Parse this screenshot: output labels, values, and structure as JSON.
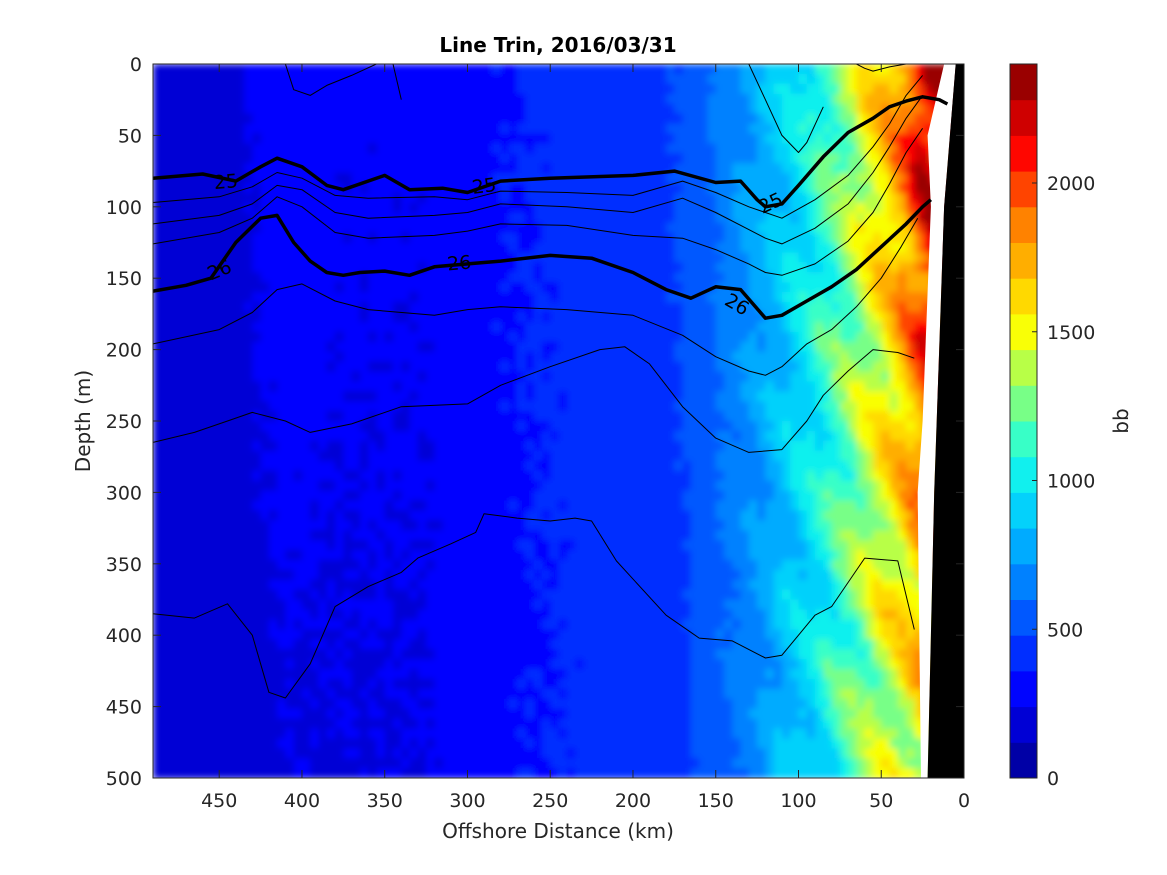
{
  "chart_data": {
    "type": "heatmap",
    "title": "Line Trin, 2016/03/31",
    "xlabel": "Offshore Distance (km)",
    "ylabel": "Depth (m)",
    "x_reversed": true,
    "y_reversed": true,
    "xlim": [
      0,
      490
    ],
    "ylim": [
      0,
      500
    ],
    "xticks": [
      450,
      400,
      350,
      300,
      250,
      200,
      150,
      100,
      50,
      0
    ],
    "xtick_labels": [
      "450",
      "400",
      "350",
      "300",
      "250",
      "200",
      "150",
      "100",
      "50",
      "0"
    ],
    "yticks": [
      0,
      50,
      100,
      150,
      200,
      250,
      300,
      350,
      400,
      450,
      500
    ],
    "ytick_labels": [
      "0",
      "50",
      "100",
      "150",
      "200",
      "250",
      "300",
      "350",
      "400",
      "450",
      "500"
    ],
    "colorbar": {
      "label": "bb",
      "range": [
        0,
        2400
      ],
      "ticks": [
        0,
        500,
        1000,
        1500,
        2000
      ],
      "tick_labels": [
        "0",
        "500",
        "1000",
        "1500",
        "2000"
      ],
      "levels": 20,
      "colormap": [
        "#00008f",
        "#0000ff",
        "#00c8ff",
        "#18ffe7",
        "#ffff00",
        "#ff8800",
        "#ff0000",
        "#800000"
      ]
    },
    "field_profile": {
      "description_free": true,
      "x": [
        490,
        450,
        430,
        410,
        380,
        320,
        300,
        250,
        200,
        170,
        150,
        130,
        110,
        90,
        70,
        50,
        35,
        25,
        20
      ],
      "surface_value": [
        180,
        170,
        250,
        300,
        260,
        260,
        330,
        380,
        420,
        500,
        620,
        760,
        900,
        1100,
        1350,
        1650,
        1950,
        2250,
        2300
      ],
      "deep_value": [
        180,
        170,
        200,
        230,
        230,
        240,
        320,
        360,
        400,
        450,
        550,
        650,
        800,
        950,
        1150,
        1350,
        1450,
        1550,
        1550
      ]
    },
    "coast": {
      "shelf_x": [
        22,
        20,
        18,
        15,
        12,
        5,
        0
      ],
      "shelf_depth": [
        500,
        400,
        300,
        200,
        100,
        0,
        0
      ]
    },
    "contours": [
      {
        "level": "25",
        "emphasis": true,
        "x": [
          490,
          460,
          440,
          425,
          415,
          400,
          385,
          375,
          350,
          335,
          315,
          300,
          280,
          250,
          200,
          175,
          150,
          135,
          125,
          120,
          110,
          100,
          85,
          70,
          55,
          45,
          35,
          25,
          15,
          10
        ],
        "depth": [
          80,
          77,
          82,
          72,
          66,
          72,
          85,
          88,
          78,
          88,
          87,
          90,
          82,
          80,
          78,
          75,
          83,
          82,
          95,
          100,
          98,
          85,
          65,
          48,
          38,
          30,
          26,
          23,
          25,
          28
        ],
        "labels": [
          {
            "x": 446,
            "depth": 82,
            "angle": -5
          },
          {
            "x": 290,
            "depth": 85,
            "angle": -8
          },
          {
            "x": 117,
            "depth": 97,
            "angle": -25
          }
        ]
      },
      {
        "level": "26",
        "emphasis": true,
        "x": [
          490,
          470,
          455,
          440,
          425,
          415,
          405,
          395,
          385,
          375,
          365,
          350,
          335,
          320,
          300,
          280,
          250,
          225,
          200,
          180,
          165,
          150,
          135,
          120,
          110,
          95,
          80,
          65,
          50,
          35,
          25,
          20
        ],
        "depth": [
          159,
          155,
          150,
          125,
          108,
          106,
          125,
          138,
          146,
          148,
          146,
          145,
          148,
          142,
          140,
          138,
          134,
          136,
          146,
          158,
          164,
          156,
          158,
          178,
          176,
          166,
          156,
          144,
          128,
          112,
          100,
          95
        ],
        "labels": [
          {
            "x": 450,
            "depth": 144,
            "angle": -22
          },
          {
            "x": 305,
            "depth": 139,
            "angle": -5
          },
          {
            "x": 137,
            "depth": 168,
            "angle": 30
          }
        ]
      },
      {
        "level": "",
        "emphasis": false,
        "x": [
          490,
          450,
          430,
          415,
          400,
          380,
          360,
          320,
          300,
          280,
          240,
          200,
          170,
          150,
          130,
          120,
          110,
          90,
          70,
          55,
          45,
          35,
          25
        ],
        "depth": [
          97,
          93,
          86,
          76,
          80,
          92,
          94,
          93,
          95,
          89,
          90,
          92,
          82,
          90,
          100,
          104,
          108,
          95,
          78,
          58,
          42,
          22,
          8
        ]
      },
      {
        "level": "",
        "emphasis": false,
        "x": [
          490,
          450,
          430,
          415,
          400,
          380,
          360,
          320,
          300,
          280,
          240,
          200,
          170,
          150,
          130,
          120,
          110,
          90,
          70,
          55,
          45,
          35,
          25
        ],
        "depth": [
          112,
          106,
          98,
          85,
          88,
          104,
          108,
          106,
          104,
          98,
          100,
          104,
          94,
          104,
          116,
          122,
          126,
          115,
          98,
          76,
          58,
          38,
          22
        ]
      },
      {
        "level": "",
        "emphasis": false,
        "x": [
          490,
          450,
          430,
          415,
          400,
          380,
          360,
          320,
          300,
          280,
          240,
          200,
          170,
          150,
          130,
          120,
          110,
          90,
          70,
          55,
          45,
          35,
          25
        ],
        "depth": [
          126,
          118,
          108,
          93,
          100,
          118,
          122,
          120,
          117,
          112,
          113,
          120,
          122,
          130,
          140,
          146,
          148,
          140,
          124,
          104,
          84,
          62,
          45
        ]
      },
      {
        "level": "",
        "emphasis": false,
        "x": [
          490,
          450,
          430,
          415,
          400,
          380,
          360,
          320,
          300,
          280,
          240,
          200,
          170,
          150,
          130,
          120,
          110,
          95,
          80,
          65,
          50,
          38,
          28
        ],
        "depth": [
          196,
          186,
          174,
          158,
          154,
          166,
          172,
          176,
          172,
          170,
          172,
          176,
          190,
          205,
          215,
          218,
          212,
          196,
          186,
          170,
          150,
          128,
          108
        ]
      },
      {
        "level": "",
        "emphasis": false,
        "x": [
          490,
          465,
          445,
          430,
          410,
          395,
          370,
          340,
          300,
          280,
          250,
          220,
          205,
          190,
          170,
          150,
          130,
          110,
          95,
          85,
          70,
          55,
          40,
          30
        ],
        "depth": [
          265,
          258,
          250,
          244,
          250,
          258,
          252,
          240,
          238,
          225,
          212,
          200,
          198,
          210,
          240,
          262,
          272,
          270,
          250,
          232,
          215,
          200,
          202,
          206
        ]
      },
      {
        "level": "",
        "emphasis": false,
        "x": [
          490,
          465,
          445,
          430,
          425,
          420,
          410,
          395,
          380,
          360,
          340,
          330,
          310,
          295,
          290,
          270,
          250,
          235,
          225,
          210,
          180,
          160,
          140,
          120,
          110,
          100,
          90,
          80,
          60,
          40,
          30
        ],
        "depth": [
          385,
          388,
          378,
          400,
          420,
          440,
          444,
          420,
          380,
          366,
          356,
          346,
          336,
          328,
          315,
          318,
          320,
          318,
          320,
          348,
          386,
          402,
          404,
          416,
          414,
          400,
          386,
          380,
          346,
          348,
          396
        ]
      },
      {
        "level": "",
        "emphasis": false,
        "x": [
          410,
          405,
          395,
          385,
          370,
          355,
          350
        ],
        "depth": [
          0,
          18,
          22,
          15,
          8,
          0,
          0
        ]
      },
      {
        "level": "",
        "emphasis": false,
        "x": [
          345,
          342,
          340
        ],
        "depth": [
          0,
          15,
          25
        ]
      },
      {
        "level": "",
        "emphasis": false,
        "x": [
          130,
          120,
          110,
          100,
          95,
          85
        ],
        "depth": [
          0,
          25,
          50,
          62,
          55,
          30
        ]
      },
      {
        "level": "",
        "emphasis": false,
        "x": [
          65,
          60,
          55,
          45,
          35
        ],
        "depth": [
          0,
          3,
          5,
          2,
          0
        ]
      }
    ]
  }
}
